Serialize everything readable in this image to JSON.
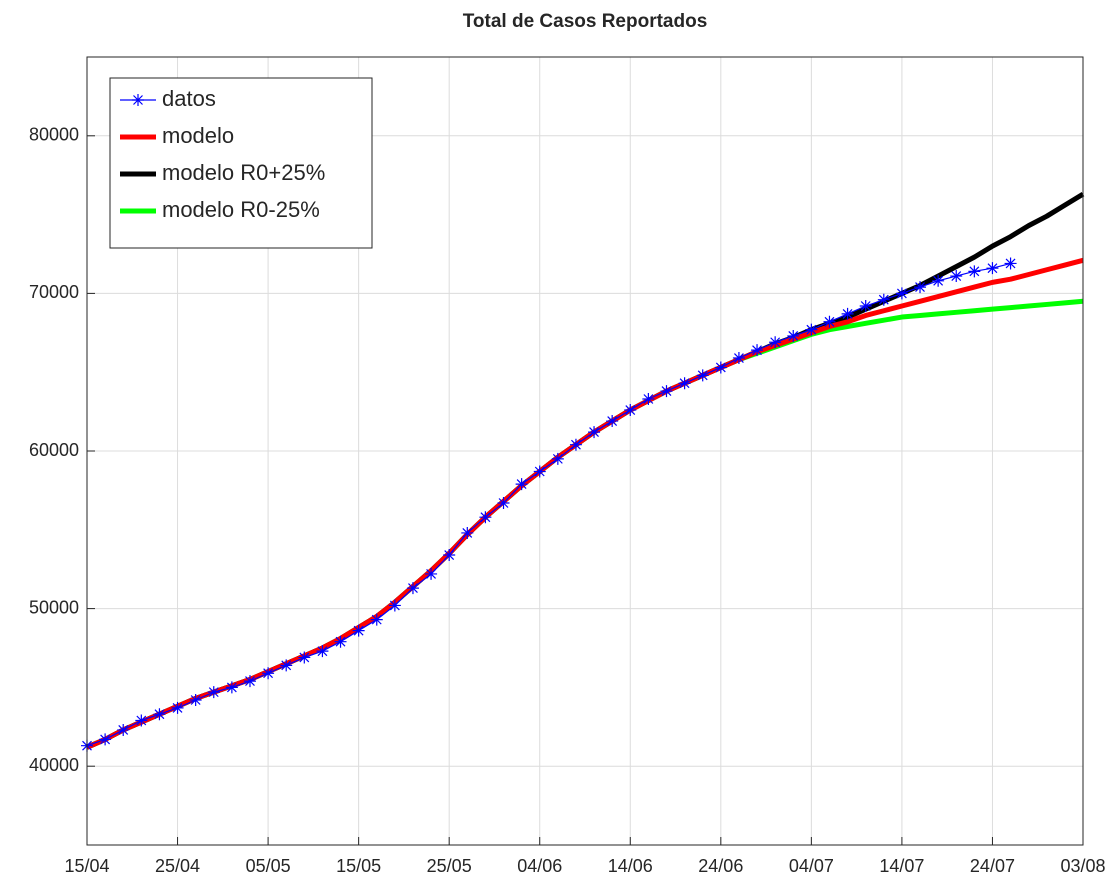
{
  "chart_data": {
    "type": "line",
    "title": "Total de Casos Reportados",
    "x": [
      "15/04",
      null,
      null,
      null,
      null,
      "25/04",
      null,
      null,
      null,
      null,
      "05/05",
      null,
      null,
      null,
      null,
      "15/05",
      null,
      null,
      null,
      null,
      "25/05",
      null,
      null,
      null,
      null,
      "04/06",
      null,
      null,
      null,
      null,
      "14/06",
      null,
      null,
      null,
      null,
      "24/06",
      null,
      null,
      null,
      null,
      "04/07",
      null,
      null,
      null,
      null,
      "14/07",
      null,
      null,
      null,
      null,
      "24/07",
      null,
      null,
      null,
      null,
      "03/08"
    ],
    "series": [
      {
        "name": "datos",
        "color": "#0000ff",
        "marker": "asterisk",
        "values": [
          41300,
          41700,
          42300,
          42900,
          43300,
          43700,
          44200,
          44700,
          45000,
          45400,
          45900,
          46400,
          46900,
          47300,
          47900,
          48600,
          49300,
          50200,
          51300,
          52200,
          53400,
          54800,
          55800,
          56700,
          57900,
          58700,
          59500,
          60400,
          61200,
          61900,
          62600,
          63300,
          63800,
          64300,
          64800,
          65300,
          65900,
          66400,
          66900,
          67300,
          67700,
          68200,
          68700,
          69200,
          69600,
          70000,
          70400,
          70800,
          71100,
          71400,
          71600,
          71900,
          null,
          null,
          null,
          null
        ]
      },
      {
        "name": "modelo",
        "color": "#ff0000",
        "values": [
          41200,
          41700,
          42300,
          42800,
          43300,
          43800,
          44300,
          44700,
          45100,
          45500,
          46000,
          46500,
          47000,
          47500,
          48100,
          48800,
          49500,
          50400,
          51400,
          52400,
          53500,
          54700,
          55800,
          56800,
          57800,
          58700,
          59600,
          60400,
          61200,
          61900,
          62600,
          63200,
          63800,
          64300,
          64800,
          65300,
          65800,
          66300,
          66700,
          67100,
          67500,
          67900,
          68200,
          68600,
          68900,
          69200,
          69500,
          69800,
          70100,
          70400,
          70700,
          70900,
          71200,
          71500,
          71800,
          72100
        ]
      },
      {
        "name": "modelo R0+25%",
        "color": "#000000",
        "values": [
          41200,
          41700,
          42300,
          42800,
          43300,
          43800,
          44300,
          44700,
          45100,
          45500,
          46000,
          46500,
          47000,
          47500,
          48100,
          48800,
          49500,
          50400,
          51400,
          52400,
          53500,
          54700,
          55800,
          56800,
          57800,
          58700,
          59600,
          60400,
          61200,
          61900,
          62600,
          63200,
          63800,
          64300,
          64800,
          65300,
          65800,
          66300,
          66800,
          67200,
          67700,
          68100,
          68500,
          69000,
          69500,
          70000,
          70500,
          71100,
          71700,
          72300,
          73000,
          73600,
          74300,
          74900,
          75600,
          76300
        ]
      },
      {
        "name": "modelo R0-25%",
        "color": "#00ff00",
        "values": [
          41200,
          41700,
          42300,
          42800,
          43300,
          43800,
          44300,
          44700,
          45100,
          45500,
          46000,
          46500,
          47000,
          47500,
          48100,
          48800,
          49500,
          50400,
          51400,
          52400,
          53500,
          54700,
          55800,
          56800,
          57800,
          58700,
          59600,
          60400,
          61200,
          61900,
          62600,
          63200,
          63800,
          64300,
          64800,
          65300,
          65800,
          66200,
          66600,
          67000,
          67400,
          67700,
          67900,
          68100,
          68300,
          68500,
          68600,
          68700,
          68800,
          68900,
          69000,
          69100,
          69200,
          69300,
          69400,
          69500
        ]
      }
    ],
    "ylim": [
      35000,
      85000
    ],
    "yticks": [
      40000,
      50000,
      60000,
      70000,
      80000
    ],
    "grid": true,
    "legend": "upper left"
  }
}
